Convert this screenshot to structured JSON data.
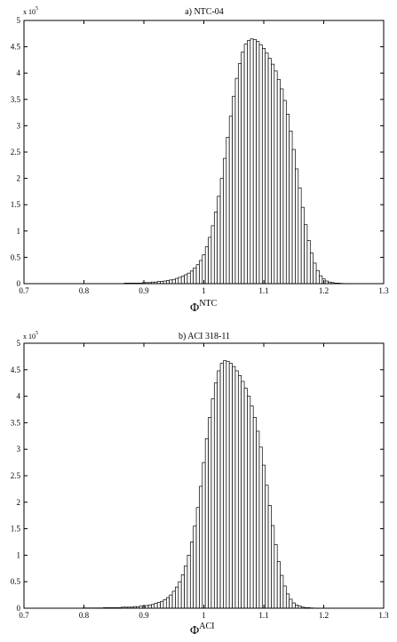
{
  "chart_data": [
    {
      "type": "bar",
      "title": "a) NTC-04",
      "xlabel_symbol": "Φ",
      "xlabel_superscript": "NTC",
      "y_multiplier_base": "x 10",
      "y_multiplier_exp": "5",
      "xlim": [
        0.7,
        1.3
      ],
      "ylim": [
        0,
        5
      ],
      "xticks": [
        "0.7",
        "0.8",
        "0.9",
        "1",
        "1.1",
        "1.2",
        "1.3"
      ],
      "yticks": [
        "0",
        "0.5",
        "1",
        "1.5",
        "2",
        "2.5",
        "3",
        "3.5",
        "4",
        "4.5",
        "5"
      ],
      "bin_width": 0.005,
      "x": [
        0.87,
        0.875,
        0.88,
        0.885,
        0.89,
        0.895,
        0.9,
        0.905,
        0.91,
        0.915,
        0.92,
        0.925,
        0.93,
        0.935,
        0.94,
        0.945,
        0.95,
        0.955,
        0.96,
        0.965,
        0.97,
        0.975,
        0.98,
        0.985,
        0.99,
        0.995,
        1.0,
        1.005,
        1.01,
        1.015,
        1.02,
        1.025,
        1.03,
        1.035,
        1.04,
        1.045,
        1.05,
        1.055,
        1.06,
        1.065,
        1.07,
        1.075,
        1.08,
        1.085,
        1.09,
        1.095,
        1.1,
        1.105,
        1.11,
        1.115,
        1.12,
        1.125,
        1.13,
        1.135,
        1.14,
        1.145,
        1.15,
        1.155,
        1.16,
        1.165,
        1.17,
        1.175,
        1.18,
        1.185,
        1.19,
        1.195,
        1.2,
        1.205,
        1.21,
        1.215,
        1.22,
        1.225,
        1.23,
        1.235,
        1.24
      ],
      "values": [
        0.01,
        0.01,
        0.01,
        0.01,
        0.01,
        0.01,
        0.02,
        0.02,
        0.02,
        0.03,
        0.03,
        0.04,
        0.04,
        0.05,
        0.06,
        0.07,
        0.08,
        0.1,
        0.12,
        0.14,
        0.17,
        0.2,
        0.24,
        0.3,
        0.36,
        0.44,
        0.55,
        0.7,
        0.88,
        1.1,
        1.36,
        1.66,
        2.0,
        2.38,
        2.78,
        3.18,
        3.56,
        3.9,
        4.18,
        4.4,
        4.55,
        4.62,
        4.65,
        4.64,
        4.6,
        4.54,
        4.47,
        4.38,
        4.28,
        4.17,
        4.04,
        3.88,
        3.7,
        3.48,
        3.22,
        2.9,
        2.55,
        2.18,
        1.82,
        1.45,
        1.12,
        0.82,
        0.58,
        0.39,
        0.25,
        0.15,
        0.09,
        0.05,
        0.03,
        0.02,
        0.01,
        0.01,
        0.005,
        0.003,
        0.002
      ]
    },
    {
      "type": "bar",
      "title": "b) ACI 318-11",
      "xlabel_symbol": "Φ",
      "xlabel_superscript": "ACI",
      "y_multiplier_base": "x 10",
      "y_multiplier_exp": "5",
      "xlim": [
        0.7,
        1.3
      ],
      "ylim": [
        0,
        5
      ],
      "xticks": [
        "0.7",
        "0.8",
        "0.9",
        "1",
        "1.1",
        "1.2",
        "1.3"
      ],
      "yticks": [
        "0",
        "0.5",
        "1",
        "1.5",
        "2",
        "2.5",
        "3",
        "3.5",
        "4",
        "4.5",
        "5"
      ],
      "bin_width": 0.005,
      "x": [
        0.8,
        0.805,
        0.81,
        0.815,
        0.82,
        0.825,
        0.83,
        0.835,
        0.84,
        0.845,
        0.85,
        0.855,
        0.86,
        0.865,
        0.87,
        0.875,
        0.88,
        0.885,
        0.89,
        0.895,
        0.9,
        0.905,
        0.91,
        0.915,
        0.92,
        0.925,
        0.93,
        0.935,
        0.94,
        0.945,
        0.95,
        0.955,
        0.96,
        0.965,
        0.97,
        0.975,
        0.98,
        0.985,
        0.99,
        0.995,
        1.0,
        1.005,
        1.01,
        1.015,
        1.02,
        1.025,
        1.03,
        1.035,
        1.04,
        1.045,
        1.05,
        1.055,
        1.06,
        1.065,
        1.07,
        1.075,
        1.08,
        1.085,
        1.09,
        1.095,
        1.1,
        1.105,
        1.11,
        1.115,
        1.12,
        1.125,
        1.13,
        1.135,
        1.14,
        1.145,
        1.15,
        1.155,
        1.16,
        1.165,
        1.17,
        1.175,
        1.18,
        1.185,
        1.19
      ],
      "values": [
        0.005,
        0.005,
        0.005,
        0.005,
        0.005,
        0.005,
        0.005,
        0.01,
        0.01,
        0.01,
        0.01,
        0.01,
        0.01,
        0.02,
        0.02,
        0.02,
        0.02,
        0.03,
        0.03,
        0.04,
        0.04,
        0.05,
        0.06,
        0.07,
        0.09,
        0.11,
        0.13,
        0.16,
        0.2,
        0.25,
        0.32,
        0.4,
        0.5,
        0.63,
        0.8,
        1.0,
        1.25,
        1.55,
        1.9,
        2.3,
        2.75,
        3.2,
        3.6,
        3.95,
        4.25,
        4.48,
        4.62,
        4.67,
        4.66,
        4.62,
        4.56,
        4.48,
        4.39,
        4.28,
        4.15,
        4.0,
        3.82,
        3.6,
        3.34,
        3.04,
        2.7,
        2.32,
        1.94,
        1.56,
        1.2,
        0.88,
        0.62,
        0.42,
        0.27,
        0.17,
        0.1,
        0.06,
        0.04,
        0.02,
        0.01,
        0.01,
        0.005,
        0.003,
        0.002
      ]
    }
  ]
}
